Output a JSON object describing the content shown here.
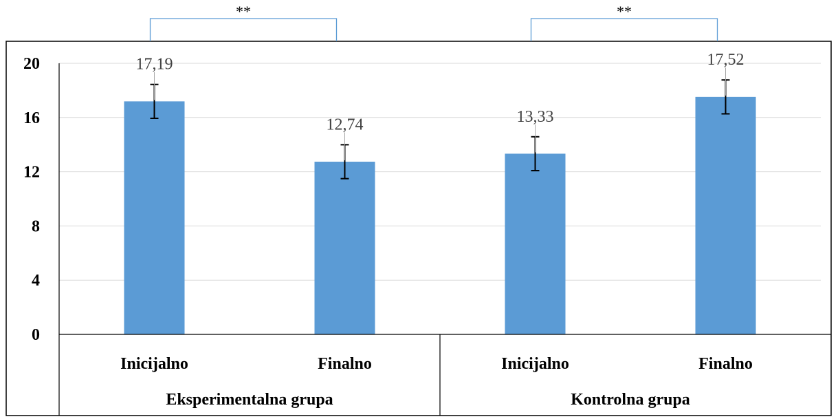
{
  "chart_data": {
    "type": "bar",
    "groups": [
      {
        "label": "Eksperimentalna grupa",
        "categories": [
          "Inicijalno",
          "Finalno"
        ]
      },
      {
        "label": "Kontrolna grupa",
        "categories": [
          "Inicijalno",
          "Finalno"
        ]
      }
    ],
    "categories": [
      "Inicijalno",
      "Finalno",
      "Inicijalno",
      "Finalno"
    ],
    "values": [
      17.19,
      12.74,
      13.33,
      17.52
    ],
    "value_labels": [
      "17,19",
      "12,74",
      "13,33",
      "17,52"
    ],
    "error": [
      1.25,
      1.25,
      1.25,
      1.25
    ],
    "ylim": [
      0,
      20
    ],
    "yticks": [
      0,
      4,
      8,
      12,
      16,
      20
    ],
    "grid": true,
    "bar_color": "#5b9bd5",
    "significance": [
      {
        "label": "**",
        "between": [
          0,
          1
        ]
      },
      {
        "label": "**",
        "between": [
          2,
          3
        ]
      }
    ]
  }
}
